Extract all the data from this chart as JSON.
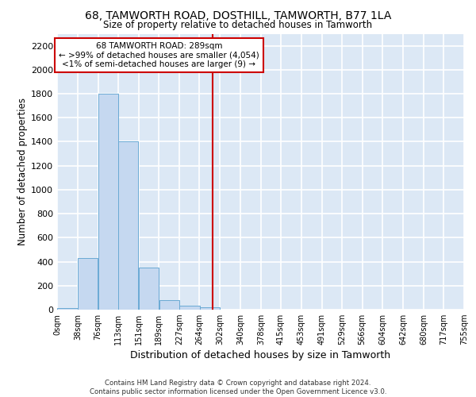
{
  "title": "68, TAMWORTH ROAD, DOSTHILL, TAMWORTH, B77 1LA",
  "subtitle": "Size of property relative to detached houses in Tamworth",
  "xlabel": "Distribution of detached houses by size in Tamworth",
  "ylabel": "Number of detached properties",
  "bin_labels": [
    "0sqm",
    "38sqm",
    "76sqm",
    "113sqm",
    "151sqm",
    "189sqm",
    "227sqm",
    "264sqm",
    "302sqm",
    "340sqm",
    "378sqm",
    "415sqm",
    "453sqm",
    "491sqm",
    "529sqm",
    "566sqm",
    "604sqm",
    "642sqm",
    "680sqm",
    "717sqm",
    "755sqm"
  ],
  "bin_edges": [
    0,
    38,
    76,
    113,
    151,
    189,
    227,
    264,
    302,
    340,
    378,
    415,
    453,
    491,
    529,
    566,
    604,
    642,
    680,
    717,
    755
  ],
  "bar_heights": [
    10,
    430,
    1800,
    1400,
    350,
    80,
    30,
    20,
    0,
    0,
    0,
    0,
    0,
    0,
    0,
    0,
    0,
    0,
    0,
    0
  ],
  "bar_color": "#c5d8f0",
  "bar_edge_color": "#6aaad4",
  "vline_x": 289,
  "vline_color": "#cc0000",
  "annotation_line1": "68 TAMWORTH ROAD: 289sqm",
  "annotation_line2": "← >99% of detached houses are smaller (4,054)",
  "annotation_line3": "<1% of semi-detached houses are larger (9) →",
  "annotation_box_color": "#cc0000",
  "ylim": [
    0,
    2300
  ],
  "yticks": [
    0,
    200,
    400,
    600,
    800,
    1000,
    1200,
    1400,
    1600,
    1800,
    2000,
    2200
  ],
  "background_color": "#dce8f5",
  "grid_color": "#ffffff",
  "footer_line1": "Contains HM Land Registry data © Crown copyright and database right 2024.",
  "footer_line2": "Contains public sector information licensed under the Open Government Licence v3.0."
}
